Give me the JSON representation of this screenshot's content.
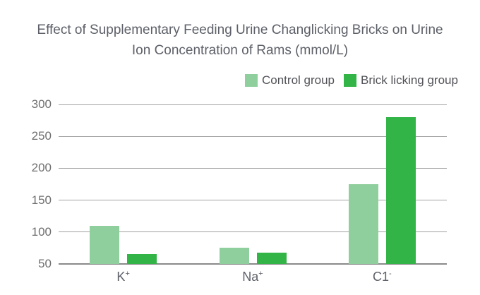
{
  "header": {
    "title_lines": [
      "Effect of Supplementary Feeding Urine Changlicking Bricks on Urine",
      "Ion Concentration of Rams (mmol/L)"
    ]
  },
  "chart_data": {
    "type": "bar",
    "title": "Effect of Supplementary Feeding Urine Changlicking Bricks on Urine Ion Concentration of Rams (mmol/L)",
    "unit": "mmol/L",
    "categories": [
      {
        "base": "K",
        "sup": "+"
      },
      {
        "base": "Na",
        "sup": "+"
      },
      {
        "base": "C1",
        "sup": "-"
      }
    ],
    "series": [
      {
        "name": "Control group",
        "color": "#8fcf9d",
        "values": [
          110,
          75,
          175
        ]
      },
      {
        "name": "Brick licking group",
        "color": "#33b447",
        "values": [
          65,
          68,
          280
        ]
      }
    ],
    "yticks": [
      50,
      100,
      150,
      200,
      250,
      300
    ],
    "ylim": [
      50,
      300
    ],
    "grid": true,
    "legend_position": "top-right",
    "colors": {
      "gridline": "#a2a2a2",
      "baseline": "#8a8a8a",
      "title_text": "#5d6068",
      "tick_text": "#6f6f6f",
      "background": "#ffffff"
    }
  }
}
